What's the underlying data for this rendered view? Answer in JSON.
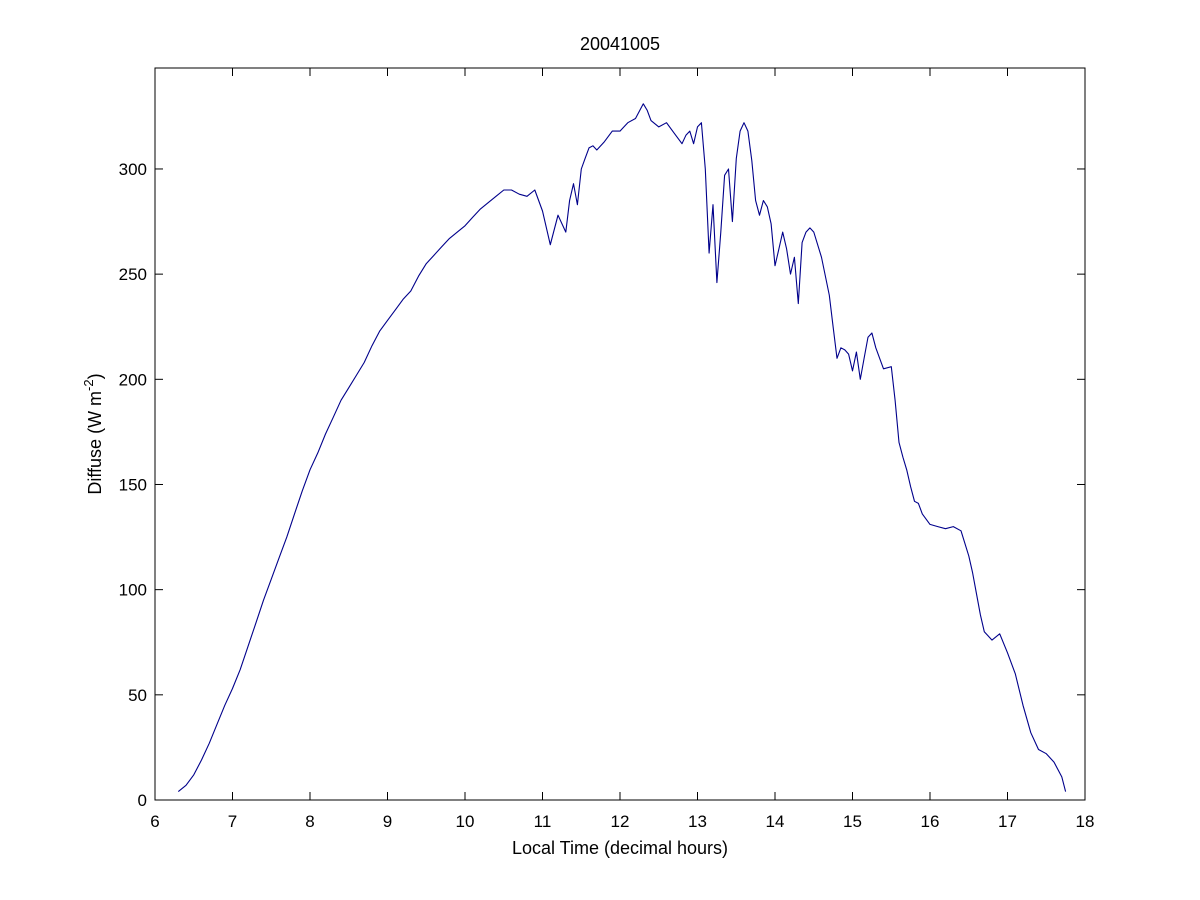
{
  "chart_data": {
    "type": "line",
    "title": "20041005",
    "xlabel": "Local Time (decimal hours)",
    "ylabel": {
      "prefix": "Diffuse (W m",
      "superscript": "-2",
      "suffix": ")"
    },
    "xlim": [
      6,
      18
    ],
    "ylim": [
      0,
      348
    ],
    "xticks": [
      6,
      7,
      8,
      9,
      10,
      11,
      12,
      13,
      14,
      15,
      16,
      17,
      18
    ],
    "yticks": [
      0,
      50,
      100,
      150,
      200,
      250,
      300
    ],
    "grid": false,
    "legend": "none",
    "line_color": "#00008b",
    "series": [
      {
        "x": [
          6.3,
          6.4,
          6.5,
          6.6,
          6.7,
          6.8,
          6.9,
          7.0,
          7.1,
          7.2,
          7.3,
          7.4,
          7.5,
          7.6,
          7.7,
          7.8,
          7.9,
          8.0,
          8.1,
          8.2,
          8.3,
          8.4,
          8.5,
          8.6,
          8.7,
          8.8,
          8.9,
          9.0,
          9.1,
          9.2,
          9.3,
          9.4,
          9.5,
          9.6,
          9.7,
          9.8,
          9.9,
          10.0,
          10.1,
          10.2,
          10.3,
          10.4,
          10.5,
          10.6,
          10.7,
          10.8,
          10.9,
          11.0,
          11.1,
          11.2,
          11.3,
          11.35,
          11.4,
          11.45,
          11.5,
          11.55,
          11.6,
          11.65,
          11.7,
          11.8,
          11.9,
          12.0,
          12.1,
          12.2,
          12.3,
          12.35,
          12.4,
          12.5,
          12.6,
          12.7,
          12.8,
          12.85,
          12.9,
          12.95,
          13.0,
          13.05,
          13.1,
          13.15,
          13.2,
          13.25,
          13.3,
          13.35,
          13.4,
          13.45,
          13.5,
          13.55,
          13.6,
          13.65,
          13.7,
          13.75,
          13.8,
          13.85,
          13.9,
          13.95,
          14.0,
          14.05,
          14.1,
          14.15,
          14.2,
          14.25,
          14.3,
          14.35,
          14.4,
          14.45,
          14.5,
          14.6,
          14.7,
          14.75,
          14.8,
          14.85,
          14.9,
          14.95,
          15.0,
          15.05,
          15.1,
          15.15,
          15.2,
          15.25,
          15.3,
          15.4,
          15.5,
          15.55,
          15.6,
          15.65,
          15.7,
          15.75,
          15.8,
          15.85,
          15.9,
          16.0,
          16.1,
          16.2,
          16.3,
          16.4,
          16.5,
          16.55,
          16.6,
          16.65,
          16.7,
          16.8,
          16.9,
          17.0,
          17.1,
          17.2,
          17.3,
          17.4,
          17.5,
          17.6,
          17.7,
          17.75
        ],
        "y": [
          4,
          7,
          12,
          19,
          27,
          36,
          45,
          53,
          62,
          73,
          84,
          95,
          105,
          115,
          125,
          136,
          147,
          157,
          165,
          174,
          182,
          190,
          196,
          202,
          208,
          216,
          223,
          228,
          233,
          238,
          242,
          249,
          255,
          259,
          263,
          267,
          270,
          273,
          277,
          281,
          284,
          287,
          290,
          290,
          288,
          287,
          290,
          280,
          264,
          278,
          270,
          285,
          293,
          283,
          300,
          305,
          310,
          311,
          309,
          313,
          318,
          318,
          322,
          324,
          331,
          328,
          323,
          320,
          322,
          317,
          312,
          316,
          318,
          312,
          320,
          322,
          300,
          260,
          283,
          246,
          270,
          297,
          300,
          275,
          305,
          318,
          322,
          318,
          304,
          285,
          278,
          285,
          282,
          274,
          254,
          262,
          270,
          262,
          250,
          258,
          236,
          265,
          270,
          272,
          270,
          258,
          240,
          225,
          210,
          215,
          214,
          212,
          204,
          213,
          200,
          210,
          220,
          222,
          215,
          205,
          206,
          190,
          170,
          163,
          157,
          149,
          142,
          141,
          136,
          131,
          130,
          129,
          130,
          128,
          116,
          108,
          98,
          88,
          80,
          76,
          79,
          70,
          60,
          45,
          32,
          24,
          22,
          18,
          11,
          4
        ]
      }
    ]
  }
}
